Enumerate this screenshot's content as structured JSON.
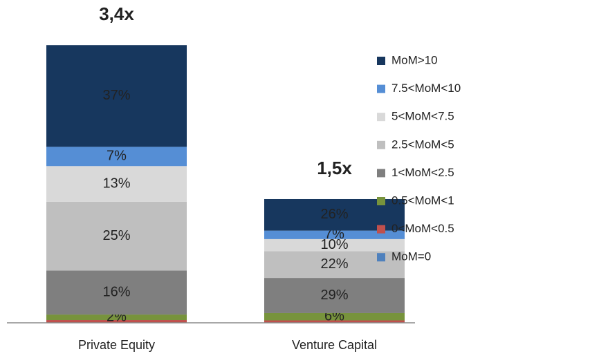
{
  "chart_data": {
    "type": "stacked_bar",
    "categories": [
      "Private Equity",
      "Venture Capital"
    ],
    "totals": [
      {
        "value": 3.4,
        "label": "3,4x"
      },
      {
        "value": 1.5,
        "label": "1,5x"
      }
    ],
    "series": [
      {
        "name": "MoM=0",
        "color": "#4f81bd",
        "label_color": "#222222",
        "values": [
          0,
          0
        ],
        "value_labels": [
          null,
          null
        ]
      },
      {
        "name": "0<MoM<0.5",
        "color": "#c0504d",
        "label_color": "#222222",
        "values": [
          1,
          2
        ],
        "value_labels": [
          null,
          null
        ]
      },
      {
        "name": "0.5<MoM<1",
        "color": "#77933c",
        "label_color": "#222222",
        "values": [
          2,
          6
        ],
        "value_labels": [
          "2%",
          "6%"
        ]
      },
      {
        "name": "1<MoM<2.5",
        "color": "#7f7f7f",
        "label_color": "#222222",
        "values": [
          16,
          29
        ],
        "value_labels": [
          "16%",
          "29%"
        ]
      },
      {
        "name": "2.5<MoM<5",
        "color": "#bfbfbf",
        "label_color": "#222222",
        "values": [
          25,
          22
        ],
        "value_labels": [
          "25%",
          "22%"
        ]
      },
      {
        "name": "5<MoM<7.5",
        "color": "#d9d9d9",
        "label_color": "#222222",
        "values": [
          13,
          10
        ],
        "value_labels": [
          "13%",
          "10%"
        ]
      },
      {
        "name": "7.5<MoM<10",
        "color": "#558ed5",
        "label_color": "#222222",
        "values": [
          7,
          7
        ],
        "value_labels": [
          "7%",
          "7%"
        ]
      },
      {
        "name": "MoM>10",
        "color": "#17375e",
        "label_color": "#ffffff",
        "values": [
          37,
          26
        ],
        "value_labels": [
          "37%",
          "26%"
        ]
      }
    ]
  }
}
